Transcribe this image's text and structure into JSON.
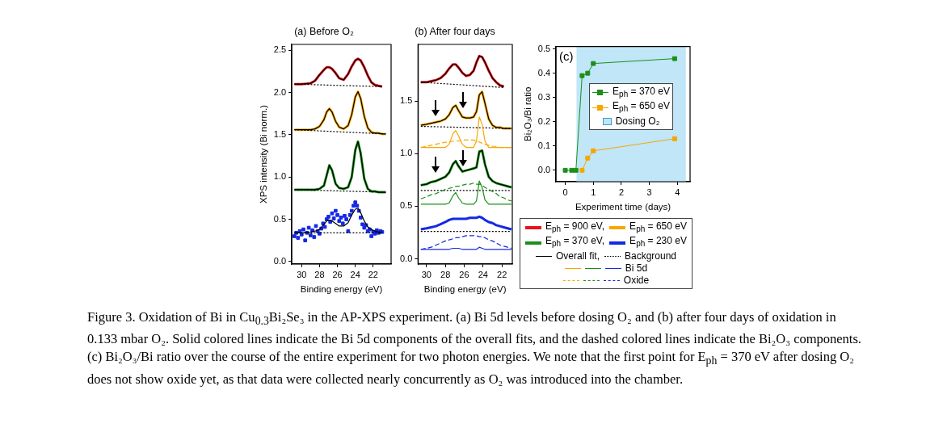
{
  "chart_data": [
    {
      "type": "line",
      "title": "(a) Before O₂",
      "xlabel": "Binding energy (eV)",
      "ylabel": "XPS intensity (Bi norm.)",
      "xlim": [
        31.1,
        20
      ],
      "xticks": [
        30,
        28,
        26,
        24,
        22
      ],
      "ylim": [
        -0.03,
        2.57
      ],
      "yticks": [
        {
          "value": 0,
          "label": "0.0"
        },
        0.5,
        {
          "value": 1,
          "label": "1.0"
        },
        1.5,
        {
          "value": 2,
          "label": "2.0"
        },
        2.5
      ],
      "marker": "none",
      "x": [
        30.8,
        30,
        29,
        28.5,
        28,
        27.5,
        27.2,
        26.9,
        26.6,
        26.2,
        25.8,
        25.3,
        24.8,
        24.4,
        24.0,
        23.7,
        23.4,
        23,
        22.6,
        22.2,
        21.8,
        21.4,
        21,
        20.6
      ],
      "series": [
        {
          "color": "#e8141b",
          "values": [
            2.1,
            2.1,
            2.11,
            2.14,
            2.21,
            2.27,
            2.3,
            2.3,
            2.28,
            2.23,
            2.17,
            2.15,
            2.22,
            2.31,
            2.38,
            2.4,
            2.38,
            2.3,
            2.2,
            2.12,
            2.09,
            2.08,
            2.07,
            null
          ]
        },
        {
          "color": "#f7a600",
          "values": [
            1.56,
            1.56,
            1.56,
            1.57,
            1.6,
            1.68,
            1.77,
            1.81,
            1.77,
            1.66,
            1.59,
            1.57,
            1.61,
            1.74,
            1.95,
            2.01,
            1.93,
            1.72,
            1.58,
            1.53,
            1.52,
            1.52,
            1.51,
            1.51
          ]
        },
        {
          "color": "#1a8f1a",
          "values": [
            0.85,
            0.85,
            0.85,
            0.85,
            0.86,
            0.9,
            1.02,
            1.14,
            1.08,
            0.92,
            0.87,
            0.86,
            0.88,
            1.0,
            1.32,
            1.42,
            1.28,
            0.98,
            0.86,
            0.83,
            0.83,
            0.82,
            0.82,
            0.82
          ]
        },
        {
          "type": "scatter",
          "color": "#1428e6",
          "marker": "square",
          "x": [
            30.8,
            30.6,
            30.4,
            30.2,
            30.0,
            29.8,
            29.6,
            29.4,
            29.2,
            29.0,
            28.8,
            28.6,
            28.4,
            28.2,
            28.0,
            27.8,
            27.6,
            27.4,
            27.2,
            27.0,
            26.8,
            26.6,
            26.4,
            26.2,
            26.0,
            25.8,
            25.6,
            25.4,
            25.2,
            25.0,
            24.8,
            24.6,
            24.4,
            24.2,
            24.0,
            23.8,
            23.6,
            23.4,
            23.2,
            23.0,
            22.8,
            22.6,
            22.4,
            22.2,
            22.0,
            21.8,
            21.6,
            21.4,
            21.2,
            21.0
          ],
          "values": [
            0.3,
            0.34,
            0.28,
            0.36,
            0.32,
            0.38,
            0.25,
            0.34,
            0.4,
            0.31,
            0.37,
            0.29,
            0.42,
            0.36,
            0.33,
            0.39,
            0.45,
            0.41,
            0.5,
            0.53,
            0.47,
            0.57,
            0.51,
            0.6,
            0.55,
            0.48,
            0.52,
            0.45,
            0.54,
            0.5,
            0.36,
            0.55,
            0.6,
            0.66,
            0.7,
            0.66,
            0.6,
            0.52,
            0.44,
            0.4,
            0.43,
            0.36,
            0.38,
            0.3,
            0.35,
            0.33,
            0.37,
            0.34,
            0.36,
            0.35
          ]
        },
        {
          "color": "#000000",
          "line_style": "solid",
          "values": [
            2.1,
            2.1,
            2.11,
            2.14,
            2.21,
            2.27,
            2.3,
            2.3,
            2.28,
            2.23,
            2.17,
            2.15,
            2.22,
            2.31,
            2.38,
            2.4,
            2.38,
            2.3,
            2.2,
            2.12,
            2.09,
            2.08,
            2.07,
            null
          ]
        },
        {
          "color": "#000000",
          "line_style": "solid",
          "values": [
            1.56,
            1.56,
            1.56,
            1.57,
            1.6,
            1.68,
            1.77,
            1.81,
            1.77,
            1.66,
            1.59,
            1.57,
            1.61,
            1.74,
            1.95,
            2.01,
            1.93,
            1.72,
            1.58,
            1.53,
            1.52,
            1.52,
            1.51,
            1.51
          ]
        },
        {
          "color": "#000000",
          "line_style": "solid",
          "values": [
            0.85,
            0.85,
            0.85,
            0.85,
            0.86,
            0.9,
            1.02,
            1.14,
            1.08,
            0.92,
            0.87,
            0.86,
            0.88,
            1.0,
            1.32,
            1.42,
            1.28,
            0.98,
            0.86,
            0.83,
            0.83,
            0.82,
            0.82,
            0.82
          ]
        },
        {
          "color": "#000000",
          "line_style": "solid",
          "values": [
            0.34,
            0.34,
            0.35,
            0.36,
            0.38,
            0.44,
            0.48,
            0.49,
            0.48,
            0.45,
            0.42,
            0.42,
            0.46,
            0.55,
            0.62,
            0.63,
            0.58,
            0.48,
            0.41,
            0.38,
            0.36,
            0.35,
            0.35,
            null
          ]
        },
        {
          "color": "#000000",
          "line_style": "dotted",
          "x": [
            30.8,
            21
          ],
          "values": [
            2.1,
            2.07
          ]
        },
        {
          "color": "#000000",
          "line_style": "dotted",
          "x": [
            30.8,
            20.6
          ],
          "values": [
            1.56,
            1.51
          ]
        },
        {
          "color": "#000000",
          "line_style": "dotted",
          "x": [
            30.8,
            20.6
          ],
          "values": [
            0.85,
            0.82
          ]
        },
        {
          "color": "#000000",
          "line_style": "dotted",
          "x": [
            30.8,
            21
          ],
          "values": [
            0.34,
            0.34
          ]
        }
      ],
      "annotations": [
        "Figure 3. Oxidation of Bi in Cu$_{0.3}$Bi₂Se₃ in the AP-XPS experiment. (a) Bi 5d levels before dosing O₂ and (b) after four days of oxidation in 0.133 mbar O₂. Solid colored lines indicate the Bi 5d components of the overall fits, and the dashed colored lines indicate the Bi₂O₃ components. (c) Bi₂O₃/Bi ratio over the course of the entire experiment for two photon energies. We note that the first point for E$_{ph}$ = 370 eV after dosing O₂ does not show oxide yet, as that data were collected nearly concurrently as O₂ was introduced into the chamber."
      ]
    },
    {
      "type": "line",
      "title": "(b) After four days",
      "xlabel": "Binding energy (eV)",
      "xlim": [
        30.9,
        20.9
      ],
      "xticks": [
        30,
        28,
        26,
        24,
        22
      ],
      "ylim": [
        -0.05,
        2.04
      ],
      "yticks": [
        {
          "value": 0,
          "label": "0.0"
        },
        0.5,
        {
          "value": 1,
          "label": "1.0"
        },
        1.5
      ],
      "marker": "none",
      "legend": "right",
      "x": [
        30.6,
        30,
        29.5,
        29,
        28.5,
        28,
        27.6,
        27.2,
        26.9,
        26.6,
        26.2,
        25.8,
        25.4,
        25,
        24.7,
        24.4,
        24.1,
        23.8,
        23.4,
        23,
        22.6,
        22.2,
        21.8,
        21.4,
        21
      ],
      "series": [
        {
          "name": "E$_{ph}$ = 900 eV,",
          "color": "#e8141b",
          "values": [
            1.68,
            1.68,
            1.69,
            1.7,
            1.72,
            1.76,
            1.81,
            1.85,
            1.85,
            1.82,
            1.77,
            1.74,
            1.75,
            1.79,
            1.87,
            1.93,
            1.92,
            1.87,
            1.79,
            1.72,
            1.68,
            1.65,
            1.64,
            null,
            null
          ]
        },
        {
          "name": "E$_{ph}$ = 650 eV",
          "color": "#f7a600",
          "values": [
            1.27,
            1.28,
            1.29,
            1.3,
            1.31,
            1.33,
            1.37,
            1.44,
            1.46,
            1.41,
            1.35,
            1.34,
            1.34,
            1.35,
            1.4,
            1.56,
            1.59,
            1.48,
            1.33,
            1.27,
            1.25,
            1.25,
            1.24,
            1.24,
            1.24
          ]
        },
        {
          "name": "E$_{ph}$ = 370 eV,",
          "color": "#1a8f1a",
          "values": [
            0.7,
            0.71,
            0.73,
            0.74,
            0.76,
            0.78,
            0.82,
            0.9,
            0.93,
            0.88,
            0.83,
            0.84,
            0.85,
            0.86,
            0.87,
            1.02,
            1.03,
            0.9,
            0.78,
            0.74,
            0.72,
            0.71,
            0.7,
            0.69,
            0.68
          ]
        },
        {
          "name": "E$_{ph}$ = 230 eV",
          "color": "#1428e6",
          "values": [
            0.28,
            0.29,
            0.3,
            0.31,
            0.33,
            0.35,
            0.37,
            0.38,
            0.38,
            0.38,
            0.38,
            0.38,
            0.39,
            0.39,
            0.39,
            0.4,
            0.39,
            0.37,
            0.35,
            0.34,
            0.32,
            0.31,
            0.3,
            0.29,
            0.28
          ]
        },
        {
          "name": "Overall fit,",
          "color": "#000000",
          "line_style": "solid",
          "values": [
            1.68,
            1.68,
            1.69,
            1.7,
            1.72,
            1.76,
            1.81,
            1.85,
            1.85,
            1.82,
            1.77,
            1.74,
            1.75,
            1.79,
            1.87,
            1.93,
            1.92,
            1.87,
            1.79,
            1.72,
            1.68,
            1.65,
            1.64,
            null,
            null
          ]
        },
        {
          "color": "#000000",
          "line_style": "solid",
          "values": [
            1.27,
            1.28,
            1.29,
            1.3,
            1.31,
            1.33,
            1.37,
            1.44,
            1.46,
            1.41,
            1.35,
            1.34,
            1.34,
            1.35,
            1.4,
            1.56,
            1.59,
            1.48,
            1.33,
            1.27,
            1.25,
            1.25,
            1.24,
            1.24,
            1.24
          ]
        },
        {
          "color": "#000000",
          "line_style": "solid",
          "values": [
            0.7,
            0.71,
            0.73,
            0.74,
            0.76,
            0.78,
            0.82,
            0.9,
            0.93,
            0.88,
            0.83,
            0.84,
            0.85,
            0.86,
            0.87,
            1.02,
            1.03,
            0.9,
            0.78,
            0.74,
            0.72,
            0.71,
            0.7,
            0.69,
            0.68
          ]
        },
        {
          "name": "Background",
          "color": "#000000",
          "line_style": "dotted",
          "x": [
            30.6,
            21.8
          ],
          "values": [
            1.68,
            1.63
          ]
        },
        {
          "color": "#000000",
          "line_style": "dotted",
          "x": [
            30.6,
            21
          ],
          "values": [
            1.26,
            1.24
          ]
        },
        {
          "color": "#000000",
          "line_style": "dotted",
          "x": [
            30.6,
            21
          ],
          "values": [
            0.65,
            0.65
          ]
        },
        {
          "color": "#000000",
          "line_style": "dotted",
          "x": [
            30.6,
            21
          ],
          "values": [
            0.26,
            0.26
          ]
        },
        {
          "color": "#f7a600",
          "line_style": "solid",
          "values": [
            1.06,
            1.06,
            1.06,
            1.06,
            1.06,
            1.06,
            1.09,
            1.19,
            1.22,
            1.17,
            1.09,
            1.06,
            1.06,
            1.06,
            1.12,
            1.35,
            1.28,
            1.12,
            1.06,
            1.06,
            1.06,
            1.06,
            1.06,
            1.06,
            1.06
          ]
        },
        {
          "color": "#1a8f1a",
          "line_style": "solid",
          "values": [
            0.52,
            0.52,
            0.52,
            0.52,
            0.52,
            0.52,
            0.53,
            0.6,
            0.63,
            0.58,
            0.53,
            0.52,
            0.52,
            0.52,
            0.55,
            0.74,
            0.68,
            0.56,
            0.52,
            0.52,
            0.52,
            0.52,
            0.52,
            0.52,
            0.52
          ]
        },
        {
          "name": "Bi 5d",
          "color": "#1428e6",
          "line_style": "solid",
          "values": [
            0.09,
            0.09,
            0.09,
            0.09,
            0.09,
            0.09,
            0.09,
            0.1,
            0.1,
            0.1,
            0.09,
            0.09,
            0.09,
            0.09,
            0.09,
            0.11,
            0.1,
            0.09,
            0.09,
            0.09,
            0.09,
            0.09,
            0.09,
            0.09,
            0.09
          ]
        },
        {
          "color": "#f7a600",
          "line_style": "dashed",
          "values": [
            1.06,
            1.07,
            1.08,
            1.09,
            1.1,
            1.11,
            1.11,
            1.12,
            1.12,
            1.12,
            1.13,
            1.13,
            1.13,
            1.13,
            1.12,
            1.11,
            1.1,
            1.09,
            1.08,
            1.07,
            1.07,
            1.06,
            1.06,
            1.06,
            1.06
          ]
        },
        {
          "color": "#1a8f1a",
          "line_style": "dashed",
          "values": [
            0.57,
            0.59,
            0.61,
            0.62,
            0.64,
            0.66,
            0.67,
            0.68,
            0.69,
            0.69,
            0.7,
            0.71,
            0.71,
            0.72,
            0.71,
            0.71,
            0.7,
            0.68,
            0.66,
            0.64,
            0.62,
            0.59,
            0.58,
            0.56,
            0.55
          ]
        },
        {
          "name": "Oxide",
          "color": "#1428e6",
          "line_style": "dashed",
          "values": [
            0.09,
            0.1,
            0.11,
            0.13,
            0.15,
            0.17,
            0.18,
            0.19,
            0.2,
            0.2,
            0.21,
            0.22,
            0.22,
            0.22,
            0.22,
            0.21,
            0.21,
            0.2,
            0.18,
            0.17,
            0.15,
            0.13,
            0.12,
            0.11,
            0.1
          ]
        }
      ]
    },
    {
      "type": "line",
      "title": "(c)",
      "xlabel": "Experiment time (days)",
      "ylabel": "Bi₂O₃/Bi ratio",
      "xlim": [
        -0.33,
        4.45
      ],
      "xticks": [
        0,
        1,
        2,
        3,
        4
      ],
      "ylim": [
        -0.047,
        0.51
      ],
      "yticks": [
        {
          "value": 0,
          "label": "0.0"
        },
        0.1,
        0.2,
        0.3,
        0.4,
        0.5
      ],
      "marker": "square",
      "legend": "right",
      "bands": [
        {
          "axis": "x",
          "from": 0.4,
          "to": 4.3,
          "label": "Dosing O₂",
          "color": "#c0e6f8"
        }
      ],
      "series": [
        {
          "name": "E$_{ph}$ = 370 eV",
          "color": "#1a8f1a",
          "x": [
            0,
            0.23,
            0.38,
            0.6,
            0.8,
            1.0,
            3.9
          ],
          "values": [
            0,
            0,
            0,
            0.39,
            0.4,
            0.44,
            0.46
          ]
        },
        {
          "name": "E$_{ph}$ = 650 eV",
          "color": "#f7a600",
          "x": [
            0.6,
            0.8,
            1.0,
            3.9
          ],
          "values": [
            0,
            0.05,
            0.08,
            0.13
          ]
        }
      ]
    }
  ]
}
